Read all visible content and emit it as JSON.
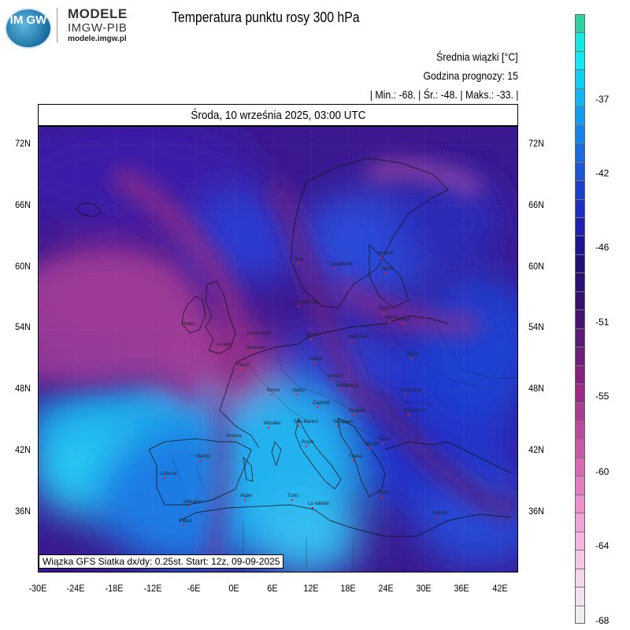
{
  "header": {
    "logo_text": "IM GW",
    "brand_title": "MODELE",
    "brand_subtitle": "IMGW-PIB",
    "brand_url": "modele.imgw.pl",
    "title": "Temperatura punktu rosy 300 hPa"
  },
  "info": {
    "line1": "Średnia wiązki [°C]",
    "line2": "Godzina prognozy: 15",
    "line3": "| Min.:    -68. | Śr.:    -48. | Maks.:    -33. |"
  },
  "map": {
    "date_line": "Środa, 10 września 2025, 03:00 UTC",
    "footnote": "Wiązka GFS Siatka dx/dy: 0.25st. Start: 12z, 09-09-2025",
    "lat_labels": [
      "72N",
      "66N",
      "60N",
      "54N",
      "48N",
      "42N",
      "36N"
    ],
    "lon_labels": [
      "-30E",
      "-24E",
      "-18E",
      "-12E",
      "-6E",
      "0E",
      "6E",
      "12E",
      "18E",
      "24E",
      "30E",
      "36E",
      "42E"
    ],
    "cities": [
      "Oslo",
      "Sztokholm",
      "Helsinki",
      "Tallinn",
      "Ryga",
      "Wilno",
      "Mińsk",
      "Kopenhaga",
      "Berlin",
      "Warszawa",
      "Kijów",
      "Amsterdam",
      "Bruksela",
      "Londyn",
      "Dublin",
      "Paryż",
      "Praga",
      "Wiedeń",
      "Budapeszt",
      "Berno",
      "Vaduz",
      "Monako",
      "San Marino",
      "Zagrzeb",
      "Sarajewo",
      "Belgrad",
      "Bukareszt",
      "Kiszyniów",
      "Sofia",
      "Skopje",
      "Tirana",
      "Rzym",
      "Andora",
      "Madryt",
      "Lizbona",
      "Gibraltar",
      "Rabat",
      "Algier",
      "Tunis",
      "La Valetta",
      "Ateny",
      "Ankara"
    ],
    "colors": {
      "cold": "#2a0a6e",
      "purple": "#7a1e8a",
      "magenta": "#b03a9e",
      "blue": "#2b3fd0",
      "cyan": "#1ec8f2"
    }
  },
  "colorbar": {
    "labels": [
      "-37",
      "-42",
      "-46",
      "-51",
      "-55",
      "-60",
      "-64",
      "-68"
    ],
    "colors": [
      "#2fd3a3",
      "#13e9e0",
      "#14e6f4",
      "#10cdf2",
      "#12b6f0",
      "#139bec",
      "#1683e8",
      "#1a6be0",
      "#1c55d6",
      "#1e3fca",
      "#1d2ec0",
      "#1e20b0",
      "#1d1590",
      "#221277",
      "#2a1272",
      "#35116d",
      "#46136e",
      "#5a1a76",
      "#701e7c",
      "#86227e",
      "#9a2a86",
      "#a83d90",
      "#b84c9c",
      "#c65aa7",
      "#d56bb3",
      "#e47cc0",
      "#ee8fce",
      "#f0a3d8",
      "#f4b6e0",
      "#f5c7e7",
      "#f3d6ea",
      "#f2e2ee",
      "#efedf1"
    ]
  }
}
